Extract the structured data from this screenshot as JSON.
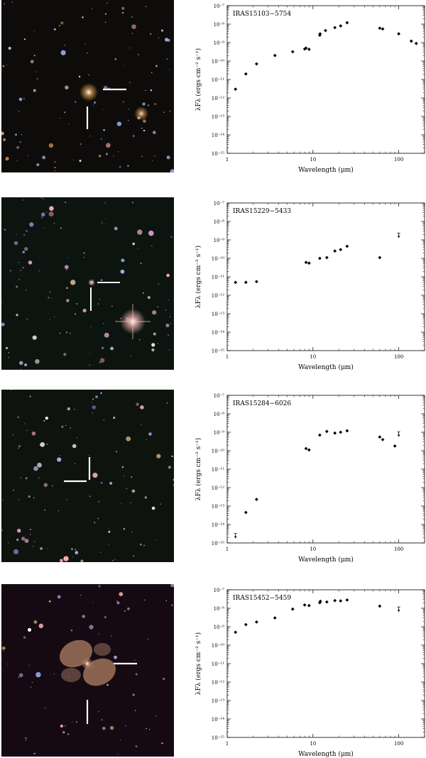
{
  "panels": [
    {
      "name": "IRAS15103-5754",
      "image": {
        "bg": "#0d0c0a",
        "tone": "#c98a4a",
        "object": "compact"
      },
      "chart_data": {
        "type": "scatter",
        "title": "IRAS15103−5754",
        "xlabel": "Wavelength (μm)",
        "ylabel": "λFλ (ergs cm⁻² s⁻¹)",
        "xscale": "log",
        "yscale": "log",
        "xlim": [
          1,
          200
        ],
        "ylim": [
          1e-15,
          1e-07
        ],
        "x_ticklabels": [
          "1",
          "10",
          "100"
        ],
        "y_ticklabels": [
          "10⁻¹⁵",
          "10⁻¹⁴",
          "10⁻¹³",
          "10⁻¹²",
          "10⁻¹¹",
          "10⁻¹⁰",
          "10⁻⁹",
          "10⁻⁸",
          "10⁻⁷"
        ],
        "points": [
          {
            "x": 1.25,
            "y": 3e-12
          },
          {
            "x": 1.65,
            "y": 2e-11
          },
          {
            "x": 2.2,
            "y": 7e-11
          },
          {
            "x": 3.6,
            "y": 2e-10
          },
          {
            "x": 5.8,
            "y": 3.2e-10
          },
          {
            "x": 8.0,
            "y": 4.5e-10
          },
          {
            "x": 8.3,
            "y": 5e-10
          },
          {
            "x": 9.0,
            "y": 4.3e-10
          },
          {
            "x": 12.0,
            "y": 2.5e-09
          },
          {
            "x": 12.1,
            "y": 3e-09
          },
          {
            "x": 14.0,
            "y": 4.5e-09
          },
          {
            "x": 18.0,
            "y": 6.5e-09
          },
          {
            "x": 21.0,
            "y": 8e-09
          },
          {
            "x": 25.0,
            "y": 1.2e-08
          },
          {
            "x": 60.0,
            "y": 6e-09
          },
          {
            "x": 65.0,
            "y": 5.5e-09
          },
          {
            "x": 100.0,
            "y": 3e-09
          },
          {
            "x": 140.0,
            "y": 1.2e-09
          },
          {
            "x": 160.0,
            "y": 9e-10
          }
        ],
        "upper_limits": []
      }
    },
    {
      "name": "IRAS15229-5433",
      "image": {
        "bg": "#0c1410",
        "tone": "#d8a0a0",
        "object": "star"
      },
      "chart_data": {
        "type": "scatter",
        "title": "IRAS15229−5433",
        "xlabel": "Wavelength (μm)",
        "ylabel": "λFλ (ergs cm⁻² s⁻¹)",
        "xscale": "log",
        "yscale": "log",
        "xlim": [
          1,
          200
        ],
        "ylim": [
          1e-15,
          1e-07
        ],
        "x_ticklabels": [
          "1",
          "10",
          "100"
        ],
        "y_ticklabels": [
          "10⁻¹⁵",
          "10⁻¹⁴",
          "10⁻¹³",
          "10⁻¹²",
          "10⁻¹¹",
          "10⁻¹⁰",
          "10⁻⁹",
          "10⁻⁸",
          "10⁻⁷"
        ],
        "points": [
          {
            "x": 1.25,
            "y": 5e-12
          },
          {
            "x": 1.65,
            "y": 5e-12
          },
          {
            "x": 2.2,
            "y": 5.5e-12
          },
          {
            "x": 8.3,
            "y": 6e-11
          },
          {
            "x": 9.0,
            "y": 5.5e-11
          },
          {
            "x": 12.0,
            "y": 1e-10
          },
          {
            "x": 14.5,
            "y": 1.1e-10
          },
          {
            "x": 18.0,
            "y": 2.5e-10
          },
          {
            "x": 21.0,
            "y": 3e-10
          },
          {
            "x": 25.0,
            "y": 4.5e-10
          },
          {
            "x": 60.0,
            "y": 1.1e-10
          }
        ],
        "upper_limits": [
          {
            "x": 100.0,
            "y": 1.8e-09
          }
        ]
      }
    },
    {
      "name": "IRAS15284-6026",
      "image": {
        "bg": "#0e130e",
        "tone": "#e0a8c0",
        "object": "none"
      },
      "chart_data": {
        "type": "scatter",
        "title": "IRAS15284−6026",
        "xlabel": "Wavelength (μm)",
        "ylabel": "λFλ (ergs cm⁻² s⁻¹)",
        "xscale": "log",
        "yscale": "log",
        "xlim": [
          1,
          200
        ],
        "ylim": [
          1e-15,
          1e-07
        ],
        "x_ticklabels": [
          "1",
          "10",
          "100"
        ],
        "y_ticklabels": [
          "10⁻¹⁵",
          "10⁻¹⁴",
          "10⁻¹³",
          "10⁻¹²",
          "10⁻¹¹",
          "10⁻¹⁰",
          "10⁻⁹",
          "10⁻⁸",
          "10⁻⁷"
        ],
        "points": [
          {
            "x": 1.65,
            "y": 4.5e-14
          },
          {
            "x": 2.2,
            "y": 2.3e-13
          },
          {
            "x": 8.3,
            "y": 1.3e-10
          },
          {
            "x": 9.0,
            "y": 1.1e-10
          },
          {
            "x": 12.0,
            "y": 7e-10
          },
          {
            "x": 14.5,
            "y": 1.1e-09
          },
          {
            "x": 18.0,
            "y": 9e-10
          },
          {
            "x": 21.0,
            "y": 1e-09
          },
          {
            "x": 25.0,
            "y": 1.2e-09
          },
          {
            "x": 60.0,
            "y": 5.5e-10
          },
          {
            "x": 65.0,
            "y": 4e-10
          },
          {
            "x": 90.0,
            "y": 1.8e-10
          }
        ],
        "upper_limits": [
          {
            "x": 1.25,
            "y": 2.5e-15
          },
          {
            "x": 100.0,
            "y": 8e-10
          }
        ]
      }
    },
    {
      "name": "IRAS15452-5459",
      "image": {
        "bg": "#160a12",
        "tone": "#b08060",
        "object": "bipolar"
      },
      "chart_data": {
        "type": "scatter",
        "title": "IRAS15452−5459",
        "xlabel": "Wavelength (μm)",
        "ylabel": "λFλ (ergs cm⁻² s⁻¹)",
        "xscale": "log",
        "yscale": "log",
        "xlim": [
          1,
          200
        ],
        "ylim": [
          1e-15,
          1e-07
        ],
        "x_ticklabels": [
          "1",
          "10",
          "100"
        ],
        "y_ticklabels": [
          "10⁻¹⁵",
          "10⁻¹⁴",
          "10⁻¹³",
          "10⁻¹²",
          "10⁻¹¹",
          "10⁻¹⁰",
          "10⁻⁹",
          "10⁻⁸",
          "10⁻⁷"
        ],
        "points": [
          {
            "x": 1.25,
            "y": 5e-10
          },
          {
            "x": 1.65,
            "y": 1.3e-09
          },
          {
            "x": 2.2,
            "y": 1.8e-09
          },
          {
            "x": 3.6,
            "y": 3e-09
          },
          {
            "x": 5.8,
            "y": 9e-09
          },
          {
            "x": 8.0,
            "y": 1.5e-08
          },
          {
            "x": 9.0,
            "y": 1.4e-08
          },
          {
            "x": 12.0,
            "y": 2e-08
          },
          {
            "x": 12.2,
            "y": 2.4e-08
          },
          {
            "x": 14.5,
            "y": 2.2e-08
          },
          {
            "x": 18.0,
            "y": 2.6e-08
          },
          {
            "x": 21.0,
            "y": 2.5e-08
          },
          {
            "x": 25.0,
            "y": 2.8e-08
          },
          {
            "x": 60.0,
            "y": 1.3e-08
          }
        ],
        "upper_limits": [
          {
            "x": 100.0,
            "y": 9e-09
          }
        ]
      }
    }
  ]
}
